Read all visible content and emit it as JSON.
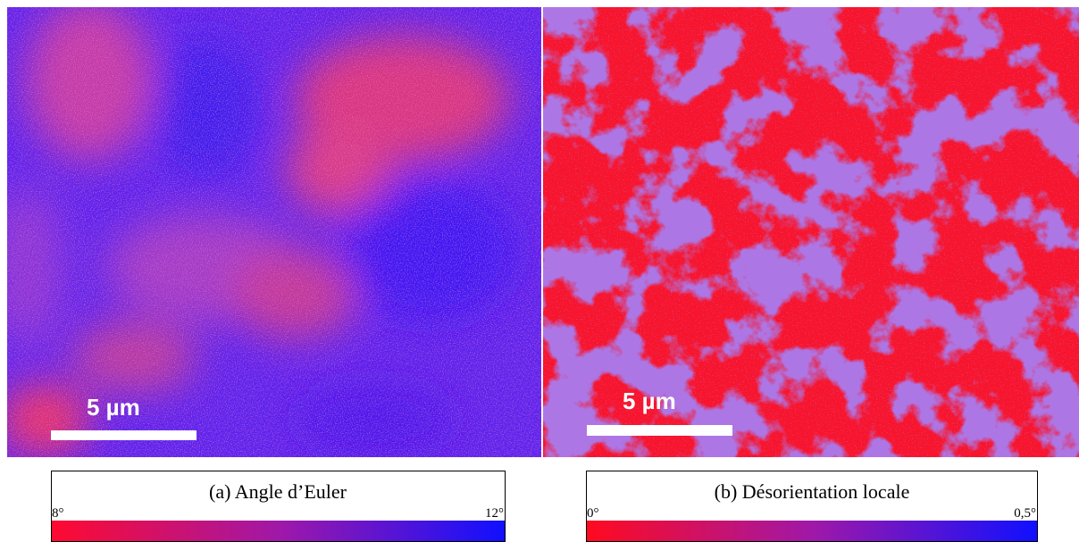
{
  "panels": [
    {
      "scale_label": "5 µm",
      "colorbar": {
        "title": "(a) Angle d’Euler",
        "min_label": "8°",
        "max_label": "12°"
      }
    },
    {
      "scale_label": "5 µm",
      "colorbar": {
        "title": "(b) Désorientation locale",
        "min_label": "0°",
        "max_label": "0,5°"
      }
    }
  ]
}
